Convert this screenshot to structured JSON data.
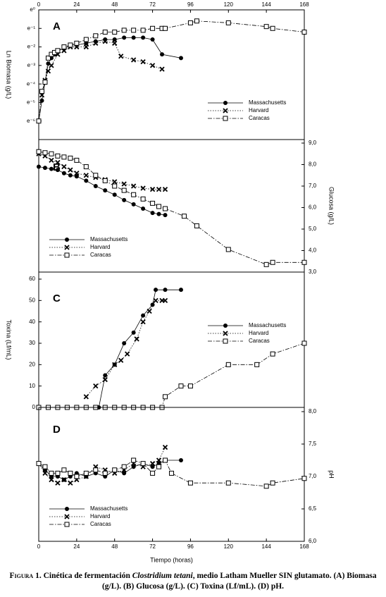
{
  "chart_data": [
    {
      "type": "line",
      "panel_label": "A",
      "y_label": "Ln Biomasa (g/L)",
      "y_axis_side": "left",
      "legend": "lower right",
      "xlim": [
        0,
        168
      ],
      "xticks": [
        0,
        24,
        48,
        72,
        96,
        120,
        144,
        168
      ],
      "x_tick_side": "top",
      "ylim": [
        -7,
        0
      ],
      "yticks": [
        {
          "value": 0,
          "label": "e⁰"
        },
        {
          "value": -1,
          "label": "e⁻¹"
        },
        {
          "value": -2,
          "label": "e⁻²"
        },
        {
          "value": -3,
          "label": "e⁻³"
        },
        {
          "value": -4,
          "label": "e⁻⁴"
        },
        {
          "value": -5,
          "label": "e⁻⁵"
        },
        {
          "value": -6,
          "label": "e⁻⁶"
        }
      ],
      "series": [
        {
          "name": "Massachusetts",
          "color": "#000000",
          "marker": "circle",
          "line_style": "solid",
          "x": [
            0,
            2,
            4,
            6,
            8,
            10,
            12,
            16,
            20,
            24,
            30,
            36,
            42,
            48,
            54,
            60,
            66,
            72,
            78,
            90
          ],
          "values": [
            -6,
            -4.9,
            -3.9,
            -2.9,
            -2.6,
            -2.4,
            -2.2,
            -2.1,
            -1.9,
            -1.9,
            -1.8,
            -1.7,
            -1.6,
            -1.6,
            -1.5,
            -1.5,
            -1.5,
            -1.6,
            -2.4,
            -2.6
          ]
        },
        {
          "name": "Harvard",
          "color": "#000000",
          "marker": "x",
          "line_style": "dotted",
          "x": [
            2,
            4,
            6,
            8,
            12,
            16,
            20,
            24,
            30,
            36,
            42,
            48,
            52,
            60,
            66,
            72,
            78
          ],
          "values": [
            -4.6,
            -3.8,
            -3.3,
            -3.0,
            -2.4,
            -2.2,
            -2.0,
            -2.0,
            -2.0,
            -1.8,
            -1.7,
            -1.8,
            -2.5,
            -2.7,
            -2.8,
            -3.0,
            -3.2
          ]
        },
        {
          "name": "Caracas",
          "color": "#000000",
          "marker": "square",
          "line_style": "dashdot",
          "x": [
            0,
            2,
            4,
            6,
            8,
            10,
            12,
            16,
            20,
            24,
            30,
            36,
            42,
            48,
            54,
            60,
            66,
            72,
            78,
            80,
            96,
            100,
            120,
            144,
            148,
            168
          ],
          "values": [
            -6,
            -4.4,
            -3.9,
            -2.6,
            -2.4,
            -2.3,
            -2.2,
            -2.0,
            -1.9,
            -1.8,
            -1.6,
            -1.4,
            -1.2,
            -1.2,
            -1.1,
            -1.1,
            -1.1,
            -1.0,
            -1.0,
            -1.0,
            -0.7,
            -0.6,
            -0.7,
            -0.9,
            -1.0,
            -1.2
          ]
        }
      ]
    },
    {
      "type": "line",
      "panel_label": "B",
      "y_label": "Glucosa (g/L)",
      "y_axis_side": "right",
      "legend": "lower left",
      "xlim": [
        0,
        168
      ],
      "ylim": [
        3,
        9
      ],
      "yticks": [
        {
          "value": 3,
          "label": "3,0"
        },
        {
          "value": 4,
          "label": "4,0"
        },
        {
          "value": 5,
          "label": "5,0"
        },
        {
          "value": 6,
          "label": "6,0"
        },
        {
          "value": 7,
          "label": "7,0"
        },
        {
          "value": 8,
          "label": "8,0"
        },
        {
          "value": 9,
          "label": "9,0"
        }
      ],
      "series": [
        {
          "name": "Massachusetts",
          "color": "#000000",
          "marker": "circle",
          "line_style": "solid",
          "x": [
            0,
            4,
            8,
            12,
            16,
            20,
            24,
            30,
            36,
            42,
            48,
            54,
            60,
            66,
            72,
            76,
            80
          ],
          "values": [
            7.9,
            7.85,
            7.8,
            7.75,
            7.6,
            7.5,
            7.45,
            7.25,
            7.0,
            6.8,
            6.6,
            6.35,
            6.15,
            5.95,
            5.75,
            5.7,
            5.65
          ]
        },
        {
          "name": "Harvard",
          "color": "#000000",
          "marker": "x",
          "line_style": "dotted",
          "x": [
            0,
            4,
            8,
            12,
            16,
            20,
            24,
            30,
            36,
            42,
            48,
            54,
            60,
            66,
            72,
            76,
            80
          ],
          "values": [
            8.5,
            8.4,
            8.2,
            8.1,
            7.9,
            7.75,
            7.6,
            7.5,
            7.4,
            7.3,
            7.2,
            7.1,
            7.0,
            6.9,
            6.85,
            6.85,
            6.85
          ]
        },
        {
          "name": "Caracas",
          "color": "#000000",
          "marker": "square",
          "line_style": "dashdot",
          "x": [
            0,
            4,
            8,
            12,
            16,
            20,
            24,
            30,
            36,
            42,
            48,
            54,
            60,
            66,
            72,
            76,
            80,
            92,
            100,
            120,
            144,
            148,
            168
          ],
          "values": [
            8.6,
            8.55,
            8.5,
            8.4,
            8.35,
            8.3,
            8.2,
            7.9,
            7.5,
            7.25,
            7.0,
            6.8,
            6.6,
            6.4,
            6.2,
            6.05,
            5.95,
            5.6,
            5.15,
            4.05,
            3.35,
            3.45,
            3.45
          ]
        }
      ]
    },
    {
      "type": "line",
      "panel_label": "C",
      "y_label": "Toxina (Lf/mL)",
      "y_axis_side": "left",
      "legend": "upper right",
      "xlim": [
        0,
        168
      ],
      "ylim": [
        0,
        60
      ],
      "yticks": [
        0,
        10,
        20,
        30,
        40,
        50,
        60
      ],
      "series": [
        {
          "name": "Massachusetts",
          "color": "#000000",
          "marker": "circle",
          "line_style": "solid",
          "x": [
            38,
            42,
            48,
            54,
            60,
            66,
            72,
            74,
            80,
            90
          ],
          "values": [
            0,
            15,
            20,
            30,
            35,
            43,
            48,
            55,
            55,
            55
          ]
        },
        {
          "name": "Harvard",
          "color": "#000000",
          "marker": "x",
          "line_style": "dotted",
          "x": [
            30,
            36,
            42,
            48,
            52,
            56,
            62,
            66,
            70,
            74,
            78,
            80
          ],
          "values": [
            5,
            10,
            13,
            20,
            22,
            25,
            32,
            40,
            45,
            50,
            50,
            50
          ]
        },
        {
          "name": "Caracas",
          "color": "#000000",
          "marker": "square",
          "line_style": "dashdot",
          "x": [
            0,
            6,
            12,
            18,
            24,
            30,
            36,
            42,
            48,
            54,
            60,
            66,
            72,
            78,
            80,
            90,
            96,
            120,
            138,
            148,
            168
          ],
          "values": [
            0,
            0,
            0,
            0,
            0,
            0,
            0,
            0,
            0,
            0,
            0,
            0,
            0,
            0,
            5,
            10,
            10,
            20,
            20,
            25,
            30
          ]
        }
      ]
    },
    {
      "type": "line",
      "panel_label": "D",
      "y_label": "pH",
      "y_axis_side": "right",
      "legend": "lower left",
      "x_label": "Tiempo (horas)",
      "xlim": [
        0,
        168
      ],
      "xticks": [
        0,
        24,
        48,
        72,
        96,
        120,
        144,
        168
      ],
      "x_tick_side": "bottom",
      "ylim": [
        6,
        8
      ],
      "yticks": [
        {
          "value": 6,
          "label": "6,0"
        },
        {
          "value": 6.5,
          "label": "6,5"
        },
        {
          "value": 7,
          "label": "7,0"
        },
        {
          "value": 7.5,
          "label": "7,5"
        },
        {
          "value": 8,
          "label": "8,0"
        }
      ],
      "series": [
        {
          "name": "Massachusetts",
          "color": "#000000",
          "marker": "circle",
          "line_style": "solid",
          "x": [
            0,
            4,
            8,
            12,
            16,
            20,
            24,
            30,
            36,
            42,
            48,
            54,
            60,
            66,
            72,
            76,
            80,
            90
          ],
          "values": [
            7.2,
            7.1,
            7.0,
            7.0,
            6.95,
            7.0,
            7.05,
            7.0,
            7.05,
            7.0,
            7.1,
            7.05,
            7.15,
            7.2,
            7.15,
            7.2,
            7.25,
            7.25
          ]
        },
        {
          "name": "Harvard",
          "color": "#000000",
          "marker": "x",
          "line_style": "dotted",
          "x": [
            0,
            4,
            8,
            12,
            16,
            20,
            24,
            30,
            36,
            42,
            48,
            54,
            60,
            66,
            72,
            76,
            80
          ],
          "values": [
            7.2,
            7.05,
            6.95,
            6.9,
            6.95,
            6.9,
            6.95,
            7.0,
            7.15,
            7.1,
            7.05,
            7.1,
            7.2,
            7.15,
            7.2,
            7.25,
            7.45
          ]
        },
        {
          "name": "Caracas",
          "color": "#000000",
          "marker": "square",
          "line_style": "dashdot",
          "x": [
            0,
            4,
            8,
            12,
            16,
            20,
            24,
            30,
            36,
            42,
            48,
            54,
            60,
            66,
            72,
            76,
            80,
            84,
            96,
            120,
            144,
            148,
            168
          ],
          "values": [
            7.2,
            7.15,
            7.05,
            7.05,
            7.1,
            7.05,
            7.0,
            7.05,
            7.1,
            7.05,
            7.1,
            7.15,
            7.25,
            7.2,
            7.05,
            7.15,
            7.25,
            7.05,
            6.9,
            6.9,
            6.85,
            6.9,
            6.97
          ]
        }
      ]
    }
  ],
  "figure_caption": {
    "label": "Figura 1.",
    "text_before": "Cinética de fermentación",
    "species": "Clostridium tetani",
    "text_after": ", medio Latham Mueller SIN glutamato. (A) Biomasa (g/L). (B) Glucosa (g/L). (C) Toxina (Lf/mL). (D) pH."
  }
}
